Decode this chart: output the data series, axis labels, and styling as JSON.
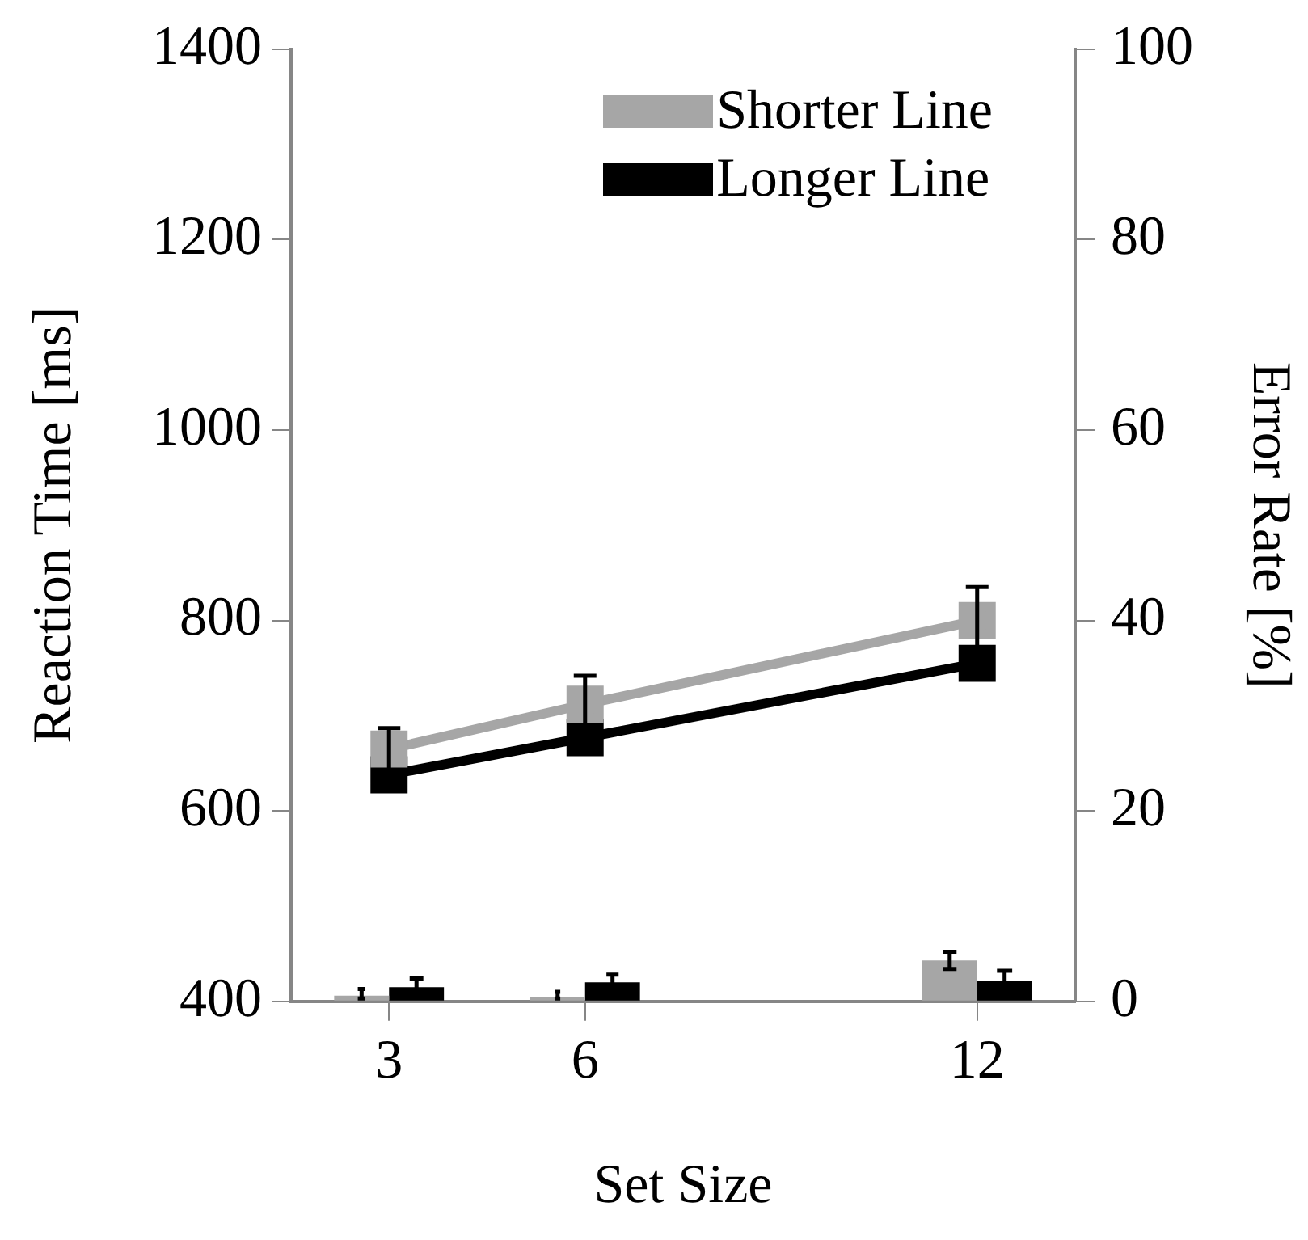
{
  "chart_data": {
    "type": "line",
    "xlabel": "Set Size",
    "ylabel": "Reaction Time [ms]",
    "y2label": "Error Rate [%]",
    "x": [
      3,
      6,
      12
    ],
    "xlim": [
      1.5,
      13.5
    ],
    "xticks": [
      3,
      6,
      12
    ],
    "ylim": [
      400,
      1400
    ],
    "yticks": [
      400,
      600,
      800,
      1000,
      1200,
      1400
    ],
    "y2lim": [
      0,
      100
    ],
    "y2ticks": [
      0,
      20,
      40,
      60,
      80,
      100
    ],
    "series": [
      {
        "name": "Shorter Line",
        "color": "#a6a6a6",
        "values": [
          665,
          712,
          800
        ],
        "errors": [
          22,
          30,
          35
        ]
      },
      {
        "name": "Longer Line",
        "color": "#000000",
        "values": [
          638,
          677,
          755
        ]
      },
      {
        "type": "bar",
        "axis": "y2",
        "color": "#a6a6a6",
        "values": [
          0.6,
          0.4,
          4.3
        ],
        "errors": [
          [
            0.3,
            1.3
          ],
          [
            0.3,
            1.0
          ],
          0.9
        ]
      },
      {
        "type": "bar",
        "axis": "y2",
        "color": "#000000",
        "values": [
          1.5,
          2.0,
          2.2
        ],
        "errors": [
          0.9,
          0.8,
          1.0
        ]
      }
    ],
    "marker": "square",
    "grid": false,
    "legend": "top right"
  }
}
